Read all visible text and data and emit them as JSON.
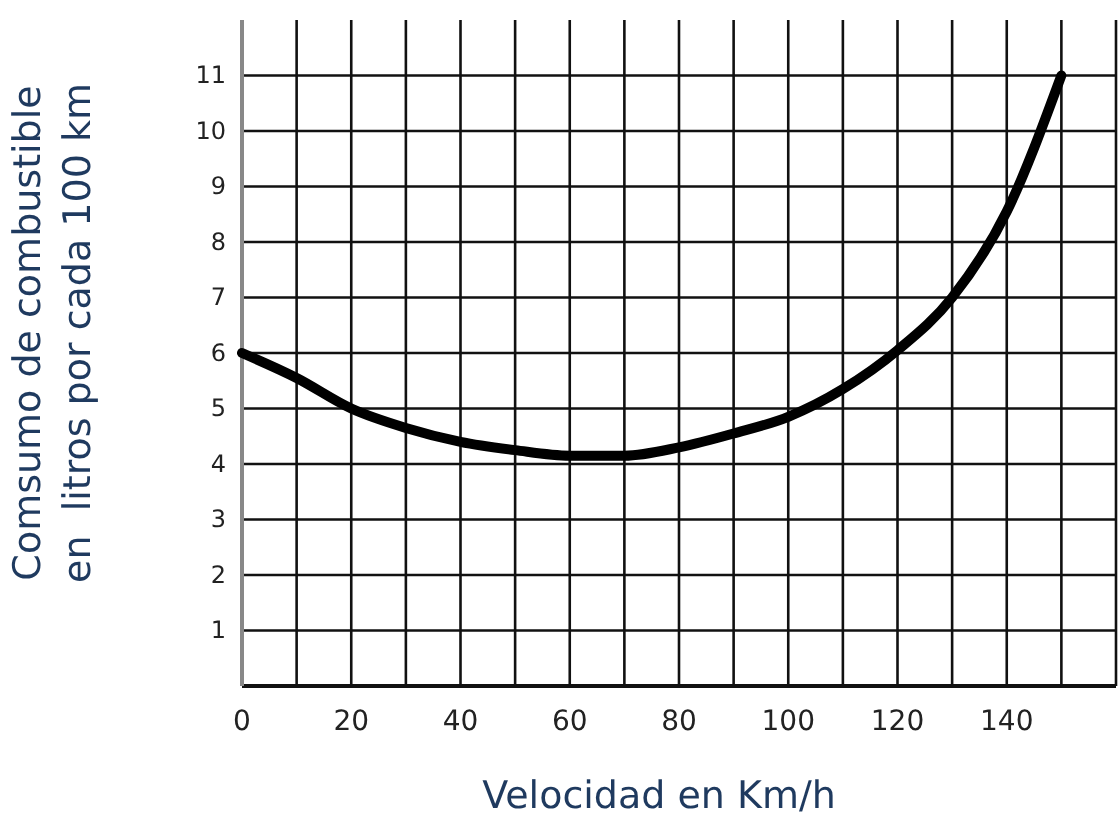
{
  "chart_data": {
    "type": "line",
    "xlabel": "Velocidad en Km/h",
    "ylabel": "Comsumo de combustible\nen  litros por cada 100 km",
    "x": [
      0,
      10,
      20,
      30,
      40,
      50,
      60,
      70,
      80,
      90,
      100,
      110,
      120,
      130,
      140,
      150
    ],
    "series": [
      {
        "color": "#000000",
        "values": [
          6.0,
          5.55,
          5.0,
          4.65,
          4.4,
          4.25,
          4.15,
          4.15,
          4.3,
          4.55,
          4.85,
          5.35,
          6.05,
          7.0,
          8.55,
          11.0
        ]
      }
    ],
    "xlim": [
      0,
      160
    ],
    "xticks": [
      0,
      20,
      40,
      60,
      80,
      100,
      120,
      140,
      {
        "value": 160,
        "label": null
      }
    ],
    "ylim": [
      0,
      12
    ],
    "yticks": [
      1,
      2,
      3,
      4,
      5,
      6,
      7,
      8,
      9,
      10,
      11
    ],
    "grid": true,
    "marker": "none",
    "line_style": "solid"
  }
}
